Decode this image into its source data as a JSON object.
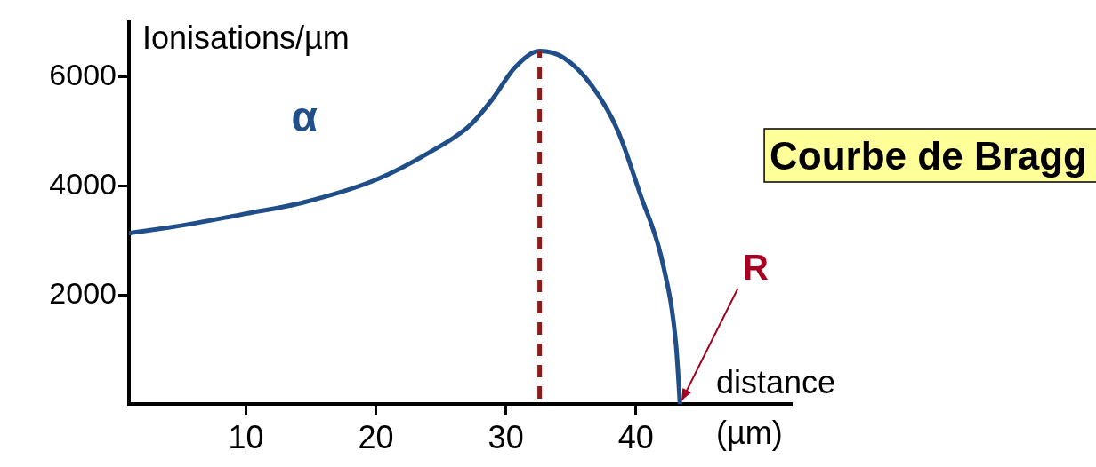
{
  "chart_data": {
    "type": "line",
    "ylabel": "Ionisations/µm",
    "xlabel": "distance (µm)",
    "x": [
      1,
      5.5,
      10,
      14.5,
      20,
      24.1,
      27.2,
      29,
      30.7,
      32.6,
      34.5,
      36.6,
      38.6,
      40.3,
      42.1,
      43.1,
      43.4
    ],
    "series": [
      {
        "name": "α",
        "color": "#1f4e89",
        "values": [
          3130,
          3290,
          3490,
          3700,
          4110,
          4610,
          5100,
          5600,
          6170,
          6470,
          6340,
          5840,
          5020,
          3870,
          2550,
          1070,
          0
        ]
      }
    ],
    "xlim": [
      1,
      52
    ],
    "ylim": [
      0,
      7000
    ],
    "xticks": [
      10,
      20,
      30,
      40
    ],
    "yticks": [
      2000,
      4000,
      6000
    ],
    "ref_lines": [
      {
        "axis": "x",
        "value": 32.6,
        "color": "#8b1a1a",
        "line_style": "dashed"
      }
    ],
    "annotations": [
      "Courbe de Bragg",
      {
        "text": "R",
        "x": 43.4,
        "y": 0
      }
    ],
    "grid": false,
    "legend": false,
    "marker": "none",
    "line_style": "solid"
  }
}
